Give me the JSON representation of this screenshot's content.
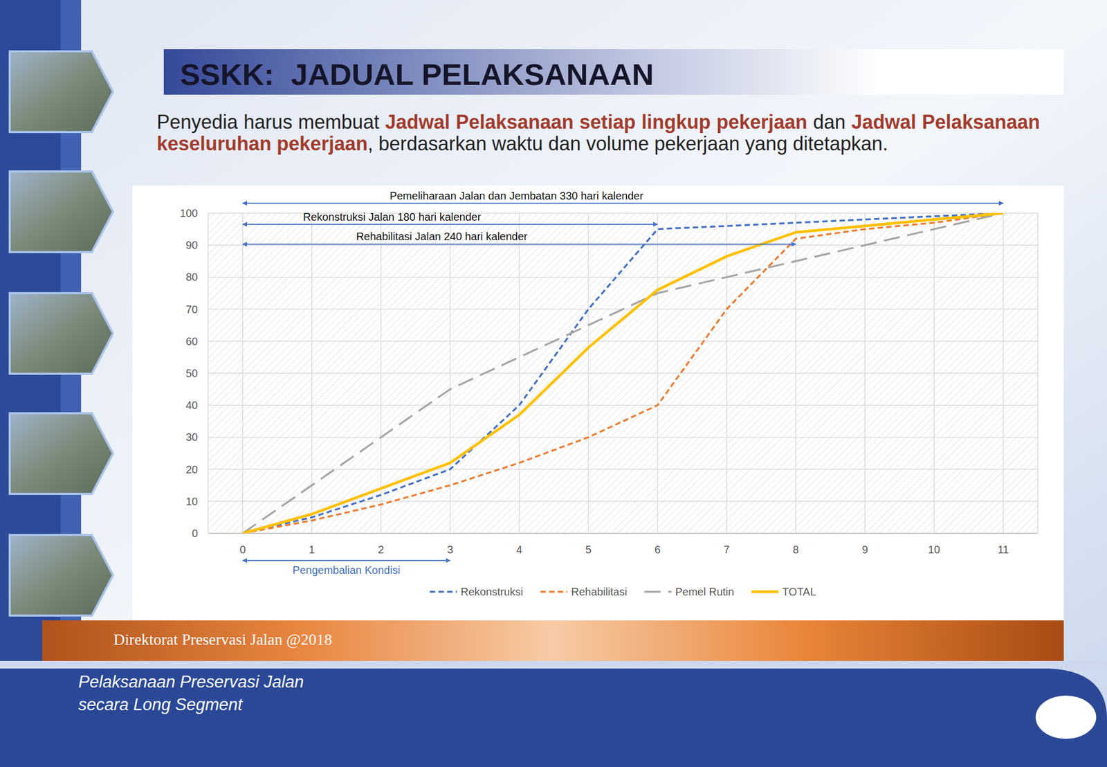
{
  "slide": {
    "title": "SSKK:  JADUAL PELAKSANAAN",
    "paragraph": [
      {
        "text": "Penyedia harus membuat "
      },
      {
        "text": "Jadwal Pelaksanaan setiap lingkup pekerjaan",
        "color": "#a23b2c"
      },
      {
        "text": " dan "
      },
      {
        "text": "Jadwal Pelaksanaan keseluruhan pekerjaan",
        "color": "#a23b2c"
      },
      {
        "text": ", berdasarkan waktu dan volume pekerjaan yang ditetapkan."
      }
    ],
    "footer": "Direktorat Preservasi Jalan @2018",
    "subtitle": [
      "Pelaksanaan Preservasi Jalan",
      "secara Long Segment"
    ]
  },
  "chart_data": {
    "type": "line",
    "x": [
      0,
      1,
      2,
      3,
      4,
      5,
      6,
      7,
      8,
      9,
      10,
      11
    ],
    "xlim": [
      -0.5,
      11.5
    ],
    "xticks": [
      0,
      1,
      2,
      3,
      4,
      5,
      6,
      7,
      8,
      9,
      10,
      11
    ],
    "ylim": [
      0,
      100
    ],
    "yticks": [
      0,
      10,
      20,
      30,
      40,
      50,
      60,
      70,
      80,
      90,
      100
    ],
    "grid": true,
    "legend": "bottom",
    "series": [
      {
        "name": "Rekonstruksi",
        "color": "#4472c4",
        "line_style": "dashed",
        "values": [
          0,
          5,
          12,
          20,
          40,
          70,
          95,
          96,
          97,
          98,
          99,
          100
        ]
      },
      {
        "name": "Rehabilitasi",
        "color": "#ed7d31",
        "line_style": "dashed",
        "values": [
          0,
          4,
          9,
          15,
          22,
          30,
          40,
          70,
          92,
          95,
          97,
          100
        ]
      },
      {
        "name": "Pemel Rutin",
        "color": "#a5a5a5",
        "line_style": "long_dashed",
        "values": [
          0,
          15,
          30,
          45,
          55,
          65,
          75,
          80,
          85,
          90,
          95,
          100
        ]
      },
      {
        "name": "TOTAL",
        "color": "#ffc000",
        "line_style": "solid",
        "values": [
          0,
          6,
          14,
          22,
          37,
          58,
          76,
          86.5,
          94,
          96,
          98,
          100
        ]
      }
    ],
    "annotations": [
      {
        "text": "Pemeliharaan Jalan dan Jembatan 330 hari kalender",
        "from": 0,
        "to": 11,
        "y": 103.1
      },
      {
        "text": "Rekonstruksi Jalan 180 hari kalender",
        "from": 0,
        "to": 6,
        "y": 96.5
      },
      {
        "text": "Rehabilitasi Jalan 240 hari kalender",
        "from": 0,
        "to": 8,
        "y": 90.3
      },
      {
        "text": "Pengembalian Kondisi",
        "from": 0,
        "to": 3,
        "y": -8.5
      }
    ]
  }
}
